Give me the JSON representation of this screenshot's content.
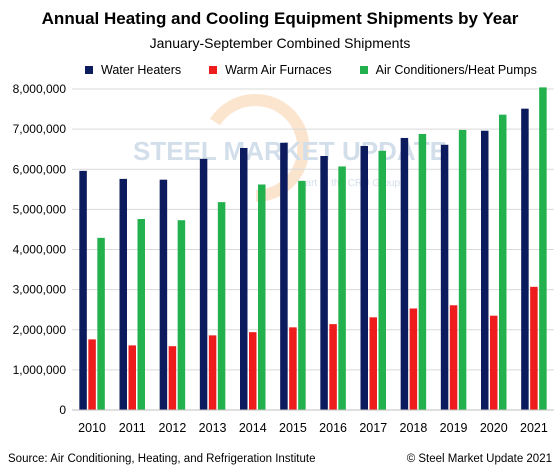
{
  "chart_data": {
    "type": "bar",
    "title": "Annual Heating and Cooling Equipment Shipments by Year",
    "subtitle": "January-September  Combined Shipments",
    "categories": [
      "2010",
      "2011",
      "2012",
      "2013",
      "2014",
      "2015",
      "2016",
      "2017",
      "2018",
      "2019",
      "2020",
      "2021"
    ],
    "series": [
      {
        "name": "Water Heaters",
        "color": "#0c1b5e",
        "values": [
          5960000,
          5760000,
          5740000,
          6260000,
          6530000,
          6660000,
          6330000,
          6580000,
          6780000,
          6610000,
          6960000,
          7510000
        ]
      },
      {
        "name": "Warm Air Furnaces",
        "color": "#ee1c1c",
        "values": [
          1760000,
          1610000,
          1590000,
          1860000,
          1940000,
          2060000,
          2140000,
          2310000,
          2530000,
          2610000,
          2350000,
          3070000
        ]
      },
      {
        "name": "Air Conditioners/Heat Pumps",
        "color": "#22b14c",
        "values": [
          4290000,
          4760000,
          4730000,
          5180000,
          5620000,
          5710000,
          6070000,
          6460000,
          6880000,
          6980000,
          7360000,
          8040000
        ]
      }
    ],
    "ylim": [
      0,
      8000000
    ],
    "yticks": [
      "0",
      "1,000,000",
      "2,000,000",
      "3,000,000",
      "4,000,000",
      "5,000,000",
      "6,000,000",
      "7,000,000",
      "8,000,000"
    ],
    "grid": true,
    "legend_position": "top"
  },
  "source": "Source: Air Conditioning, Heating, and Refrigeration Institute",
  "copyright": "© Steel Market Update 2021",
  "watermark": {
    "brand": "STEEL MARKET UPDATE",
    "tagline": "part of the CRU Group"
  }
}
